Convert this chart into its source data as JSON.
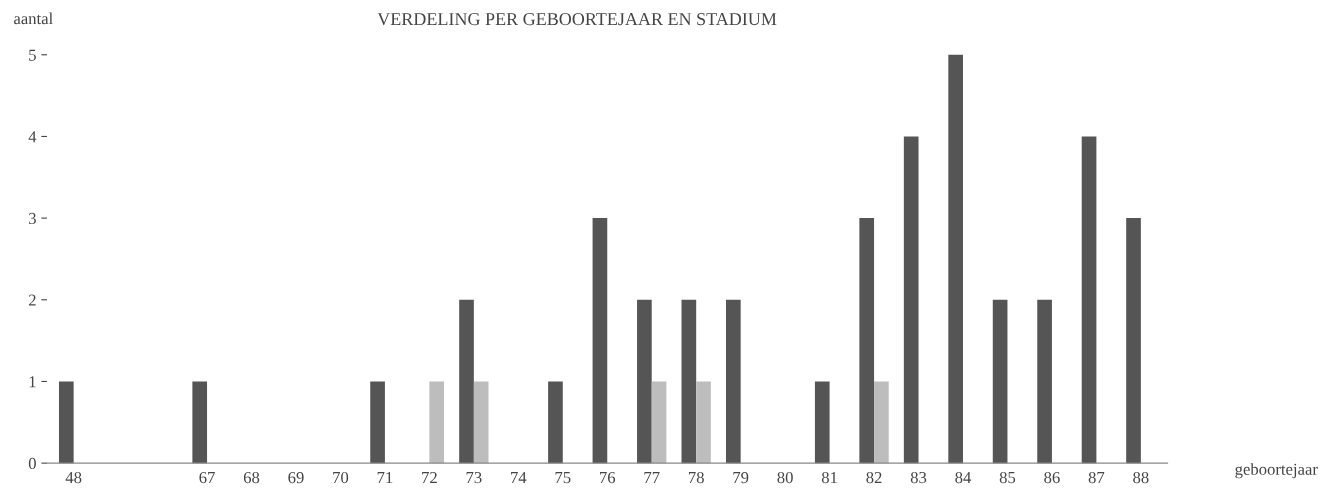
{
  "chart_data": {
    "type": "bar",
    "title": "VERDELING PER GEBOORTEJAAR EN STADIUM",
    "xlabel": "geboortejaar",
    "ylabel": "aantal",
    "categories": [
      "48",
      null,
      null,
      "67",
      "68",
      "69",
      "70",
      "71",
      "72",
      "73",
      "74",
      "75",
      "76",
      "77",
      "78",
      "79",
      "80",
      "81",
      "82",
      "83",
      "84",
      "85",
      "86",
      "87",
      "88"
    ],
    "series": [
      {
        "color": "#555555",
        "values": [
          1,
          null,
          null,
          1,
          null,
          null,
          null,
          1,
          null,
          2,
          null,
          1,
          3,
          2,
          2,
          2,
          null,
          1,
          3,
          4,
          5,
          2,
          2,
          4,
          3
        ]
      },
      {
        "color": "#bdbdbd",
        "values": [
          null,
          null,
          null,
          null,
          null,
          null,
          null,
          null,
          1,
          1,
          null,
          null,
          null,
          1,
          1,
          null,
          null,
          null,
          1,
          null,
          null,
          null,
          null,
          null,
          null
        ]
      }
    ],
    "ylim": [
      0,
      5
    ],
    "yticks": [
      0,
      1,
      2,
      3,
      4,
      5
    ],
    "grid": false,
    "legend": false
  }
}
